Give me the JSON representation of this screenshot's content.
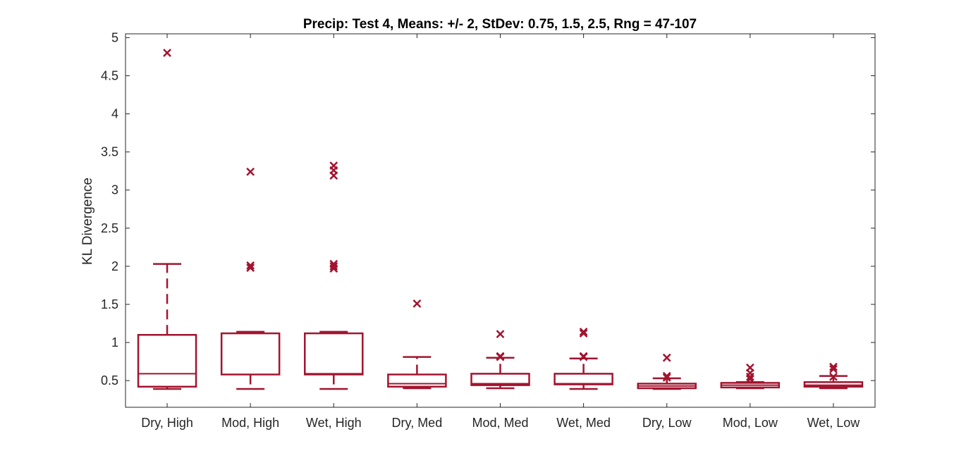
{
  "chart_data": {
    "type": "boxplot",
    "title": "Precip: Test 4, Means: +/- 2, StDev: 0.75, 1.5, 2.5, Rng = 47-107",
    "xlabel": "",
    "ylabel": "KL Divergence",
    "ylim": [
      0.15,
      5.05
    ],
    "yticks": [
      0.5,
      1,
      1.5,
      2,
      2.5,
      3,
      3.5,
      4,
      4.5,
      5
    ],
    "ytick_labels": [
      "0.5",
      "1",
      "1.5",
      "2",
      "2.5",
      "3",
      "3.5",
      "4",
      "4.5",
      "5"
    ],
    "grid": false,
    "color": "#a2142f",
    "categories": [
      "Dry, High",
      "Mod, High",
      "Wet, High",
      "Dry, Med",
      "Mod, Med",
      "Wet, Med",
      "Dry, Low",
      "Mod, Low",
      "Wet, Low"
    ],
    "boxes": [
      {
        "whisker_low": 0.39,
        "q1": 0.42,
        "median": 0.59,
        "q3": 1.1,
        "whisker_high": 2.03,
        "outliers": [
          4.8
        ]
      },
      {
        "whisker_low": 0.39,
        "q1": 0.58,
        "median": 0.58,
        "q3": 1.12,
        "whisker_high": 1.14,
        "outliers": [
          3.24,
          2.01,
          1.98
        ]
      },
      {
        "whisker_low": 0.39,
        "q1": 0.58,
        "median": 0.59,
        "q3": 1.12,
        "whisker_high": 1.14,
        "outliers": [
          3.32,
          3.26,
          3.19,
          2.03,
          2.0,
          1.97
        ]
      },
      {
        "whisker_low": 0.4,
        "q1": 0.42,
        "median": 0.46,
        "q3": 0.58,
        "whisker_high": 0.81,
        "outliers": [
          1.51
        ]
      },
      {
        "whisker_low": 0.4,
        "q1": 0.44,
        "median": 0.46,
        "q3": 0.59,
        "whisker_high": 0.8,
        "outliers": [
          1.11,
          0.82,
          0.81
        ]
      },
      {
        "whisker_low": 0.39,
        "q1": 0.45,
        "median": 0.46,
        "q3": 0.59,
        "whisker_high": 0.79,
        "outliers": [
          1.14,
          1.12,
          0.82,
          0.81
        ]
      },
      {
        "whisker_low": 0.39,
        "q1": 0.4,
        "median": 0.43,
        "q3": 0.46,
        "whisker_high": 0.53,
        "outliers": [
          0.8,
          0.56,
          0.54
        ]
      },
      {
        "whisker_low": 0.4,
        "q1": 0.41,
        "median": 0.44,
        "q3": 0.47,
        "whisker_high": 0.48,
        "outliers": [
          0.67,
          0.6,
          0.55,
          0.52
        ]
      },
      {
        "whisker_low": 0.4,
        "q1": 0.42,
        "median": 0.44,
        "q3": 0.48,
        "whisker_high": 0.56,
        "outliers": [
          0.68,
          0.65,
          0.55
        ]
      }
    ]
  }
}
